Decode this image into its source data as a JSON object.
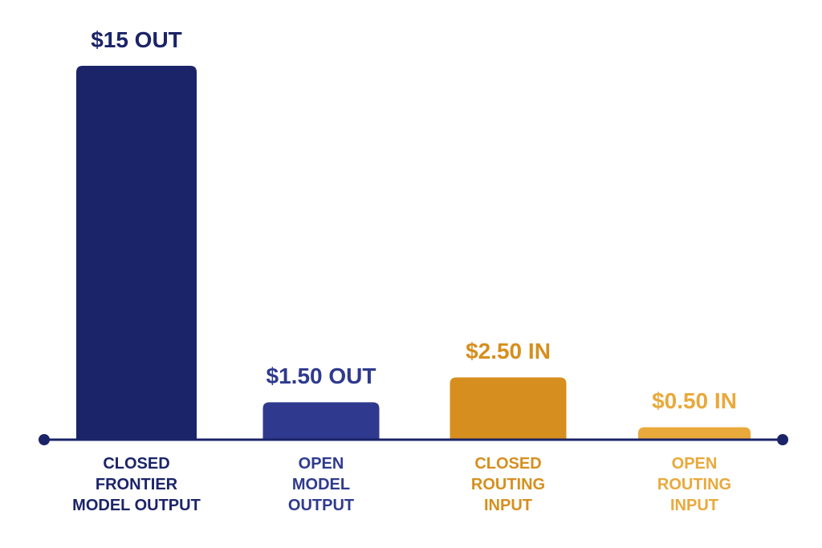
{
  "chart_data": {
    "type": "bar",
    "categories": [
      "CLOSED\nFRONTIER\nMODEL OUTPUT",
      "OPEN\nMODEL\nOUTPUT",
      "CLOSED\nROUTING\nINPUT",
      "OPEN\nROUTING\nINPUT"
    ],
    "values": [
      15,
      1.5,
      2.5,
      0.5
    ],
    "value_labels": [
      "$15 OUT",
      "$1.50 OUT",
      "$2.50 IN",
      "$0.50 IN"
    ],
    "colors": [
      "#1b2468",
      "#2f3a8e",
      "#d68f1e",
      "#e9a93b"
    ]
  }
}
